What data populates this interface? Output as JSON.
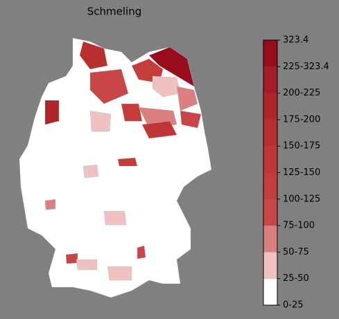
{
  "title": "Schmeling",
  "colorbar": {
    "labels": [
      "0-25",
      "25-50",
      "50-75",
      "75-100",
      "100-125",
      "125-150",
      "150-175",
      "175-200",
      "200-225",
      "225-323.4",
      "323.4"
    ],
    "colors": [
      "#ffffff",
      "#efc1c1",
      "#db8080",
      "#c94646",
      "#c43c3c",
      "#bf3636",
      "#b82f2f",
      "#b02628",
      "#a51b28",
      "#980c1e"
    ]
  }
}
